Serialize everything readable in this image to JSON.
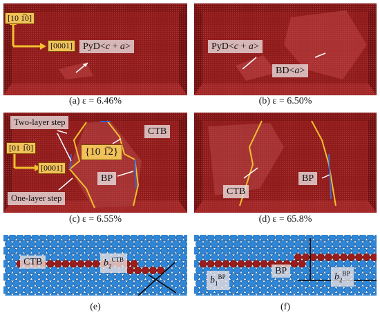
{
  "panels": {
    "a": {
      "caption": "(a) ε = 6.46%",
      "label1_pre": "PyD<",
      "label1_it1": "c",
      "label1_mid": " + ",
      "label1_it2": "a",
      "label1_post": ">",
      "dir_top": "[10 1̅0]",
      "dir_right": "[0001]"
    },
    "b": {
      "caption": "(b) ε = 6.50%",
      "label1_pre": "PyD<",
      "label1_it1": "c",
      "label1_mid": " + ",
      "label1_it2": "a",
      "label1_post": ">",
      "label2_pre": "BD<",
      "label2_it": "a",
      "label2_post": ">"
    },
    "c": {
      "caption": "(c) ε = 6.55%",
      "two_layer": "Two-layer step",
      "one_layer": "One-layer step",
      "ctb": "CTB",
      "bp": "BP",
      "plane": "{10 1̅2}",
      "dir_top": "[01 1̅0]",
      "dir_right": "[0001]"
    },
    "d": {
      "caption": "(d) ε = 65.8%",
      "ctb": "CTB",
      "bp": "BP"
    },
    "e": {
      "caption": "(e)",
      "ctb": "CTB",
      "b_main": "b",
      "b_sub": "2",
      "b_sup": "CTB"
    },
    "f": {
      "caption": "(f)",
      "bp": "BP",
      "b1_main": "b",
      "b1_sub": "1",
      "b1_sup": "BP",
      "b2_main": "b",
      "b2_sub": "2",
      "b2_sup": "BP"
    }
  },
  "colors": {
    "crystal": "#8e1a1a",
    "crystal_light": "#b23a3a",
    "atom_blue": "#2f86d6",
    "atom_red": "#9a1c1c",
    "step_yellow": "#f2c02e",
    "interface_blue": "#3b64c8"
  }
}
